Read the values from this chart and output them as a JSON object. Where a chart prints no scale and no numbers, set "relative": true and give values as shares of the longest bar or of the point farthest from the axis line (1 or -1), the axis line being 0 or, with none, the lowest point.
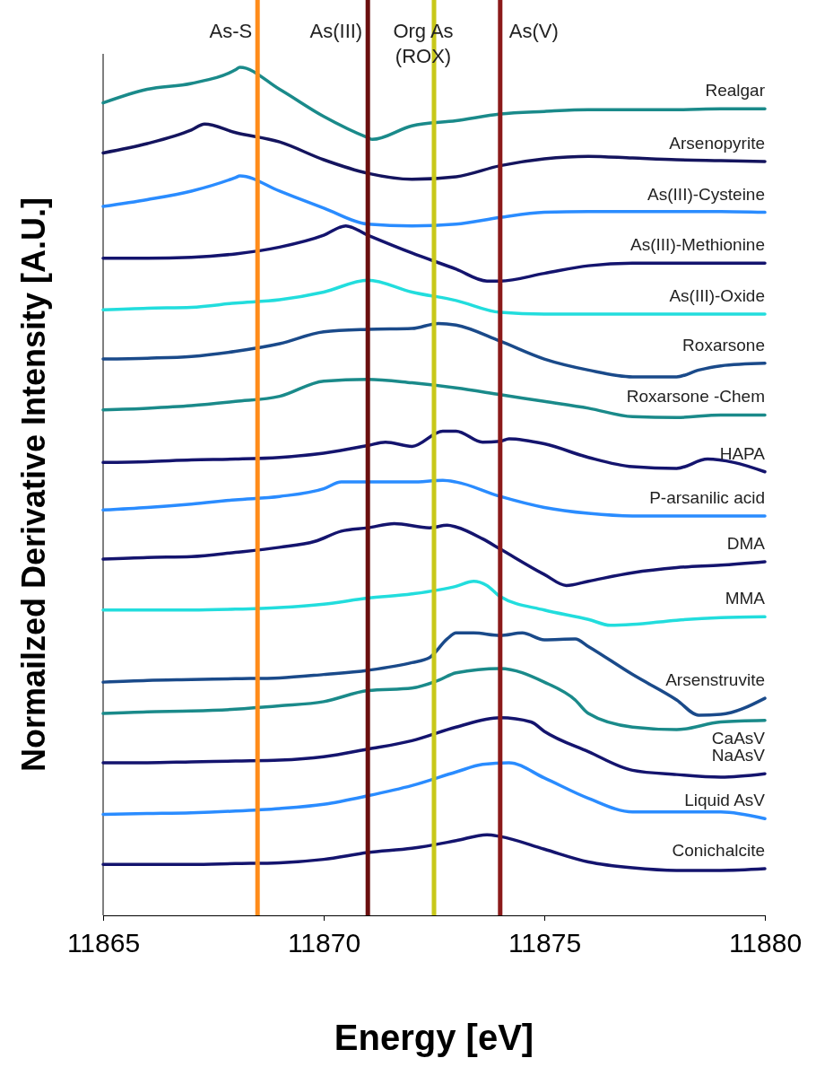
{
  "chart_data": {
    "type": "line",
    "relative": true,
    "xlabel": "Energy [eV]",
    "ylabel": "Normailzed Derivative Intensity [A.U.]",
    "xlim": [
      11865,
      11880
    ],
    "xticks": [
      11865,
      11870,
      11875,
      11880
    ],
    "grid": false,
    "legend": false,
    "marker": "none",
    "line_style": "solid",
    "ref_lines": [
      {
        "axis": "x",
        "value": 11868.5,
        "label": "As-S",
        "color": "#ff8c1a"
      },
      {
        "axis": "x",
        "value": 11871,
        "label": "As(III)",
        "color": "#6b0f0f"
      },
      {
        "axis": "x",
        "value": 11872.5,
        "label": "Org As\n(ROX)",
        "color": "#c8c81a"
      },
      {
        "axis": "x",
        "value": 11874,
        "label": "As(V)",
        "color": "#8b1a1a"
      }
    ],
    "series": [
      {
        "name": "Realgar",
        "color": "#1a8a8a",
        "x": [
          11865,
          11866,
          11867,
          11868,
          11868.1,
          11869,
          11870,
          11871,
          11871.1,
          11872,
          11873,
          11874,
          11875,
          11876,
          11877,
          11878,
          11879,
          11880
        ],
        "values": [
          0.958,
          0.974,
          0.981,
          0.997,
          1,
          0.974,
          0.942,
          0.917,
          0.915,
          0.931,
          0.937,
          0.945,
          0.948,
          0.95,
          0.95,
          0.95,
          0.951,
          0.951
        ]
      },
      {
        "name": "Arsenopyrite",
        "color": "#14145e",
        "x": [
          11865,
          11866,
          11867,
          11867.3,
          11868,
          11869,
          11870,
          11871,
          11872,
          11873,
          11874,
          11875,
          11876,
          11877,
          11878,
          11879,
          11880
        ],
        "values": [
          0.899,
          0.91,
          0.926,
          0.933,
          0.923,
          0.912,
          0.891,
          0.875,
          0.868,
          0.871,
          0.884,
          0.892,
          0.895,
          0.893,
          0.891,
          0.89,
          0.889
        ]
      },
      {
        "name": "As(III)-Cysteine",
        "color": "#2a8cff",
        "x": [
          11865,
          11866,
          11867,
          11868,
          11868.1,
          11869,
          11870,
          11871,
          11872,
          11873,
          11874,
          11875,
          11876,
          11877,
          11878,
          11879,
          11880
        ],
        "values": [
          0.836,
          0.844,
          0.854,
          0.87,
          0.872,
          0.854,
          0.834,
          0.815,
          0.813,
          0.815,
          0.823,
          0.829,
          0.83,
          0.83,
          0.83,
          0.83,
          0.829
        ]
      },
      {
        "name": "As(III)-Methionine",
        "color": "#14146e",
        "x": [
          11865,
          11866,
          11867,
          11868,
          11869,
          11870,
          11870.5,
          11871,
          11872,
          11873,
          11873.7,
          11874,
          11875,
          11876,
          11877,
          11878,
          11879,
          11880
        ],
        "values": [
          0.775,
          0.775,
          0.776,
          0.78,
          0.788,
          0.802,
          0.813,
          0.802,
          0.781,
          0.762,
          0.748,
          0.748,
          0.757,
          0.766,
          0.769,
          0.769,
          0.769,
          0.769
        ]
      },
      {
        "name": "As(III)-Oxide",
        "color": "#22dddd",
        "x": [
          11865,
          11866,
          11867,
          11868,
          11869,
          11870,
          11871,
          11872,
          11873,
          11874,
          11875,
          11876,
          11877,
          11878,
          11879,
          11880
        ],
        "values": [
          0.714,
          0.716,
          0.717,
          0.722,
          0.726,
          0.735,
          0.749,
          0.735,
          0.725,
          0.711,
          0.709,
          0.709,
          0.709,
          0.709,
          0.709,
          0.709
        ]
      },
      {
        "name": "Roxarsone",
        "color": "#1a4a8a",
        "x": [
          11865,
          11866,
          11867,
          11868,
          11869,
          11870,
          11871,
          11872,
          11872.6,
          11873,
          11874,
          11875,
          11876,
          11877,
          11878,
          11878.5,
          11879,
          11880
        ],
        "values": [
          0.656,
          0.657,
          0.659,
          0.665,
          0.674,
          0.688,
          0.691,
          0.692,
          0.698,
          0.696,
          0.677,
          0.656,
          0.643,
          0.635,
          0.635,
          0.643,
          0.648,
          0.651
        ]
      },
      {
        "name": "Roxarsone -Chem",
        "color": "#1a8a8a",
        "x": [
          11865,
          11866,
          11867,
          11868,
          11869,
          11870,
          11871,
          11872,
          11873,
          11874,
          11875,
          11876,
          11877,
          11878,
          11879,
          11880
        ],
        "values": [
          0.596,
          0.598,
          0.601,
          0.606,
          0.612,
          0.63,
          0.632,
          0.628,
          0.622,
          0.614,
          0.606,
          0.598,
          0.588,
          0.587,
          0.59,
          0.59
        ]
      },
      {
        "name": "HAPA",
        "color": "#14146e",
        "x": [
          11865,
          11866,
          11867,
          11868,
          11869,
          11870,
          11871,
          11871.4,
          11872,
          11872.7,
          11873,
          11873.6,
          11874,
          11874.2,
          11875,
          11876,
          11877,
          11878,
          11878.7,
          11879.3,
          11880
        ],
        "values": [
          0.534,
          0.535,
          0.537,
          0.538,
          0.54,
          0.545,
          0.554,
          0.558,
          0.553,
          0.571,
          0.571,
          0.558,
          0.559,
          0.562,
          0.556,
          0.54,
          0.529,
          0.527,
          0.538,
          0.534,
          0.523
        ]
      },
      {
        "name": "P-arsanilic acid",
        "color": "#2a8cff",
        "x": [
          11865,
          11866,
          11867,
          11868,
          11869,
          11870,
          11870.4,
          11871,
          11872,
          11872.7,
          11873,
          11874,
          11875,
          11876,
          11877,
          11878,
          11879,
          11880
        ],
        "values": [
          0.478,
          0.481,
          0.485,
          0.49,
          0.494,
          0.503,
          0.511,
          0.511,
          0.511,
          0.513,
          0.511,
          0.494,
          0.481,
          0.474,
          0.471,
          0.471,
          0.471,
          0.471
        ]
      },
      {
        "name": "DMA",
        "color": "#14146e",
        "x": [
          11865,
          11866,
          11867,
          11868,
          11869,
          11869.8,
          11870.4,
          11871,
          11871.6,
          11872.4,
          11872.8,
          11873,
          11873.6,
          11874,
          11875,
          11875.5,
          11876,
          11877,
          11878,
          11879,
          11880
        ],
        "values": [
          0.42,
          0.422,
          0.423,
          0.428,
          0.434,
          0.441,
          0.453,
          0.457,
          0.462,
          0.457,
          0.46,
          0.458,
          0.444,
          0.432,
          0.402,
          0.389,
          0.394,
          0.404,
          0.41,
          0.413,
          0.417
        ]
      },
      {
        "name": "MMA",
        "color": "#22dddd",
        "x": [
          11865,
          11866,
          11867,
          11868,
          11869,
          11870,
          11871,
          11872,
          11873,
          11873.4,
          11873.7,
          11874,
          11875,
          11876,
          11876.5,
          11877,
          11878,
          11879,
          11880
        ],
        "values": [
          0.36,
          0.36,
          0.36,
          0.361,
          0.363,
          0.367,
          0.374,
          0.379,
          0.388,
          0.394,
          0.389,
          0.376,
          0.36,
          0.349,
          0.342,
          0.343,
          0.348,
          0.351,
          0.352
        ]
      },
      {
        "name": "Arsenstruvite",
        "color": "#1a4a8a",
        "x": [
          11865,
          11866,
          11867,
          11868,
          11869,
          11870,
          11871,
          11872,
          11872.4,
          11872.8,
          11873,
          11873.4,
          11874,
          11874.5,
          11875,
          11875.7,
          11876,
          11877,
          11878,
          11878.5,
          11879,
          11880
        ],
        "values": [
          0.275,
          0.277,
          0.278,
          0.279,
          0.28,
          0.284,
          0.289,
          0.298,
          0.304,
          0.326,
          0.333,
          0.333,
          0.33,
          0.333,
          0.325,
          0.326,
          0.317,
          0.284,
          0.254,
          0.236,
          0.237,
          0.256
        ]
      },
      {
        "name": "CaAsV",
        "color": "#1a8a8a",
        "x": [
          11865,
          11866,
          11867,
          11868,
          11869,
          11870,
          11871,
          11872,
          11872.6,
          11873,
          11874,
          11875,
          11875.7,
          11876,
          11877,
          11878,
          11879,
          11880
        ],
        "values": [
          0.238,
          0.24,
          0.241,
          0.243,
          0.247,
          0.252,
          0.265,
          0.268,
          0.277,
          0.286,
          0.291,
          0.275,
          0.254,
          0.238,
          0.222,
          0.219,
          0.228,
          0.23
        ]
      },
      {
        "name": "NaAsV",
        "color": "#14146e",
        "x": [
          11865,
          11866,
          11867,
          11868,
          11869,
          11870,
          11871,
          11872,
          11873,
          11874,
          11874.7,
          11875,
          11876,
          11877,
          11878,
          11879,
          11880
        ],
        "values": [
          0.18,
          0.18,
          0.181,
          0.182,
          0.183,
          0.187,
          0.196,
          0.206,
          0.222,
          0.233,
          0.228,
          0.217,
          0.193,
          0.171,
          0.166,
          0.163,
          0.167
        ]
      },
      {
        "name": "Liquid AsV",
        "color": "#2a8cff",
        "x": [
          11865,
          11866,
          11867,
          11868,
          11869,
          11870,
          11871,
          11872,
          11873,
          11873.6,
          11874.2,
          11875,
          11876,
          11877,
          11878,
          11879,
          11880
        ],
        "values": [
          0.119,
          0.12,
          0.121,
          0.123,
          0.126,
          0.131,
          0.141,
          0.153,
          0.169,
          0.178,
          0.18,
          0.162,
          0.138,
          0.122,
          0.122,
          0.122,
          0.114
        ]
      },
      {
        "name": "Conichalcite",
        "color": "#14146e",
        "x": [
          11865,
          11866,
          11867,
          11868,
          11869,
          11870,
          11871,
          11872,
          11873,
          11873.7,
          11874,
          11875,
          11876,
          11877,
          11878,
          11879,
          11880
        ],
        "values": [
          0.06,
          0.06,
          0.06,
          0.061,
          0.062,
          0.066,
          0.074,
          0.079,
          0.088,
          0.095,
          0.093,
          0.078,
          0.063,
          0.056,
          0.053,
          0.053,
          0.055
        ]
      }
    ]
  }
}
